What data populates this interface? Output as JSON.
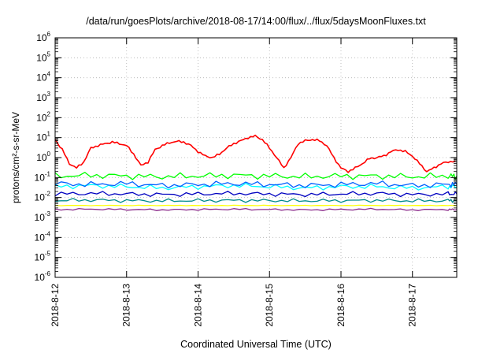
{
  "chart_data": {
    "type": "line",
    "title": "/data/run/goesPlots/archive/2018-08-17/14:00/flux/../flux/5daysMoonFluxes.txt",
    "xlabel": "Coordinated Universal Time (UTC)",
    "ylabel": "protons/cm²-s-sr-MeV",
    "y_scale": "log",
    "ylim": [
      1e-06,
      1000000.0
    ],
    "xlim": [
      0,
      5.62
    ],
    "grid": true,
    "legend": "none",
    "x_tick_labels": [
      "2018-8-12",
      "2018-8-13",
      "2018-8-14",
      "2018-8-15",
      "2018-8-16",
      "2018-8-17"
    ],
    "y_tick_exponents": [
      -6,
      -5,
      -4,
      -3,
      -2,
      -1,
      0,
      1,
      2,
      3,
      4,
      5,
      6
    ],
    "series": [
      {
        "color": "#ff0000",
        "x": [
          0.0,
          0.1,
          0.2,
          0.3,
          0.4,
          0.5,
          0.6,
          0.7,
          0.8,
          0.9,
          1.0,
          1.1,
          1.2,
          1.3,
          1.4,
          1.5,
          1.6,
          1.7,
          1.8,
          1.9,
          2.0,
          2.1,
          2.2,
          2.3,
          2.4,
          2.5,
          2.6,
          2.7,
          2.8,
          2.9,
          3.0,
          3.1,
          3.2,
          3.3,
          3.4,
          3.5,
          3.6,
          3.7,
          3.8,
          3.9,
          4.0,
          4.1,
          4.2,
          4.3,
          4.4,
          4.5,
          4.6,
          4.7,
          4.8,
          4.9,
          5.0,
          5.1,
          5.2,
          5.3,
          5.4,
          5.5,
          5.6
        ],
        "values": [
          8,
          2.5,
          0.5,
          0.3,
          0.6,
          3,
          4,
          5,
          6,
          5,
          4,
          1.5,
          0.4,
          0.6,
          2.5,
          4,
          5.5,
          6.5,
          6,
          4,
          2,
          1.2,
          1,
          1.5,
          3,
          5,
          7,
          10,
          12,
          8,
          3,
          1,
          0.3,
          1,
          5,
          7,
          8,
          7,
          4,
          1,
          0.3,
          0.2,
          0.3,
          0.5,
          0.9,
          1,
          1.2,
          2,
          2.5,
          2,
          1.2,
          0.5,
          0.2,
          0.3,
          0.5,
          0.6,
          0.7
        ]
      },
      {
        "color": "#00ff00",
        "x": [
          0,
          0.5,
          1,
          1.5,
          2,
          2.5,
          3,
          3.5,
          4,
          4.5,
          5,
          5.5,
          5.62
        ],
        "values": [
          0.12,
          0.13,
          0.12,
          0.11,
          0.12,
          0.13,
          0.12,
          0.11,
          0.12,
          0.12,
          0.11,
          0.12,
          0.12
        ]
      },
      {
        "color": "#00ffff",
        "x": [
          0,
          0.5,
          1,
          1.5,
          2,
          2.5,
          3,
          3.5,
          4,
          4.5,
          5,
          5.5,
          5.62
        ],
        "values": [
          0.035,
          0.04,
          0.035,
          0.03,
          0.035,
          0.04,
          0.035,
          0.03,
          0.035,
          0.035,
          0.03,
          0.035,
          0.035
        ]
      },
      {
        "color": "#0060ff",
        "x": [
          0,
          0.5,
          1,
          1.5,
          2,
          2.5,
          3,
          3.5,
          4,
          4.5,
          5,
          5.5,
          5.62
        ],
        "values": [
          0.05,
          0.045,
          0.05,
          0.04,
          0.045,
          0.05,
          0.045,
          0.04,
          0.045,
          0.05,
          0.04,
          0.045,
          0.045
        ]
      },
      {
        "color": "#0000c0",
        "x": [
          0,
          0.5,
          1,
          1.5,
          2,
          2.5,
          3,
          3.5,
          4,
          4.5,
          5,
          5.5,
          5.62
        ],
        "values": [
          0.015,
          0.016,
          0.015,
          0.014,
          0.015,
          0.016,
          0.015,
          0.014,
          0.015,
          0.016,
          0.014,
          0.015,
          0.015
        ]
      },
      {
        "color": "#008b8b",
        "x": [
          0,
          0.5,
          1,
          1.5,
          2,
          2.5,
          3,
          3.5,
          4,
          4.5,
          5,
          5.5,
          5.62
        ],
        "values": [
          0.007,
          0.0075,
          0.007,
          0.0068,
          0.007,
          0.0072,
          0.007,
          0.0068,
          0.007,
          0.0072,
          0.0068,
          0.007,
          0.007
        ]
      },
      {
        "color": "#ffff00",
        "x": [
          0,
          0.5,
          1,
          1.5,
          2,
          2.5,
          3,
          3.5,
          4,
          4.5,
          5,
          5.5,
          5.62
        ],
        "values": [
          0.004,
          0.004,
          0.004,
          0.004,
          0.004,
          0.004,
          0.004,
          0.004,
          0.004,
          0.004,
          0.004,
          0.004,
          0.004
        ]
      },
      {
        "color": "#8b2b8b",
        "x": [
          0,
          0.5,
          1,
          1.5,
          2,
          2.5,
          3,
          3.5,
          4,
          4.5,
          5,
          5.5,
          5.62
        ],
        "values": [
          0.0025,
          0.0026,
          0.0025,
          0.0024,
          0.0025,
          0.0026,
          0.0025,
          0.0024,
          0.0025,
          0.0026,
          0.0024,
          0.0025,
          0.0025
        ]
      }
    ]
  }
}
